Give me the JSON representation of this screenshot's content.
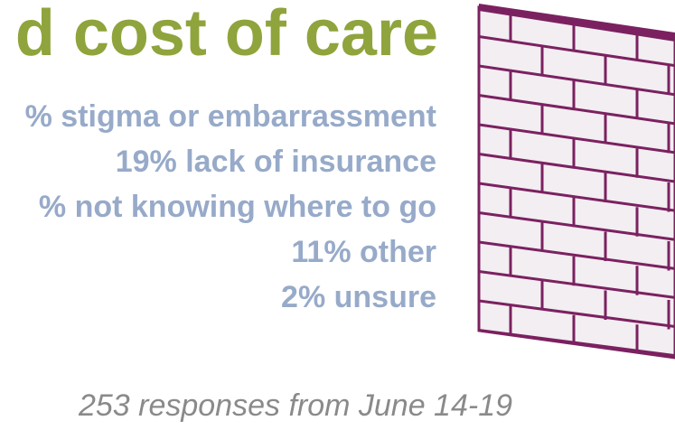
{
  "title": "d cost of care",
  "items": [
    "% stigma or embarrassment",
    "19% lack of insurance",
    "% not knowing where to go",
    "11% other",
    "2% unsure"
  ],
  "footer": "253 responses from June 14-19"
}
